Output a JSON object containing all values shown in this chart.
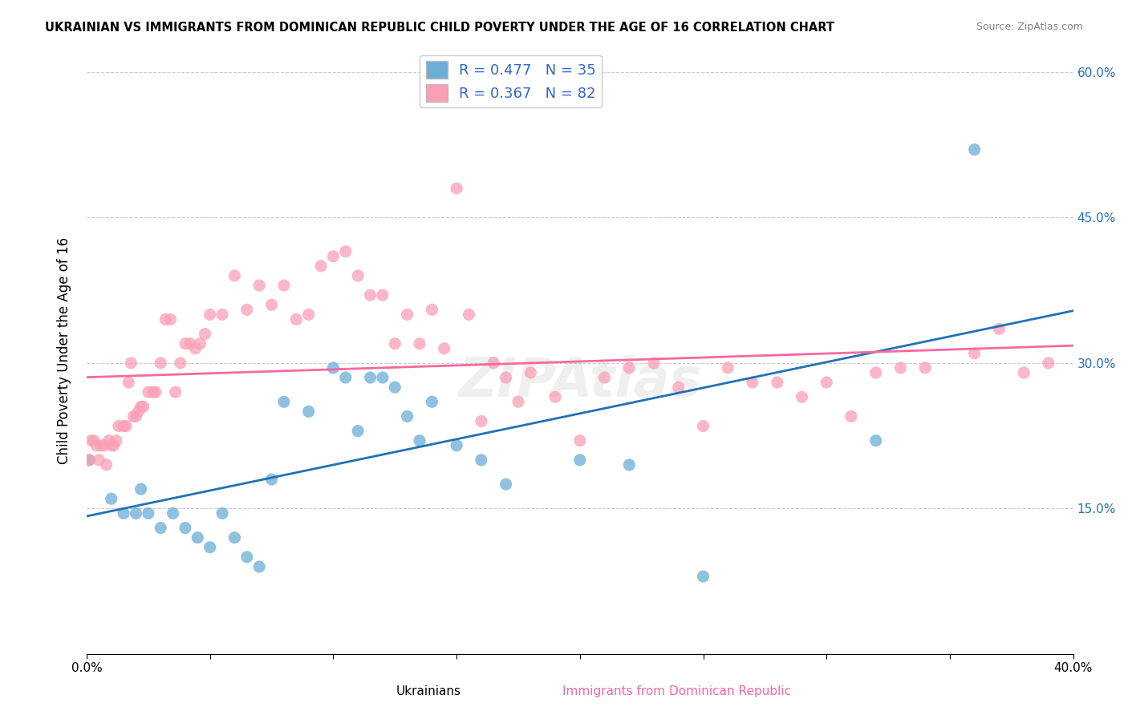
{
  "title": "UKRAINIAN VS IMMIGRANTS FROM DOMINICAN REPUBLIC CHILD POVERTY UNDER THE AGE OF 16 CORRELATION CHART",
  "source": "Source: ZipAtlas.com",
  "ylabel": "Child Poverty Under the Age of 16",
  "xlabel_ukrainians": "Ukrainians",
  "xlabel_dominican": "Immigrants from Dominican Republic",
  "xmin": 0.0,
  "xmax": 0.4,
  "ymin": 0.0,
  "ymax": 0.625,
  "yticks": [
    0.15,
    0.3,
    0.45,
    0.6
  ],
  "ytick_labels": [
    "15.0%",
    "30.0%",
    "45.0%",
    "60.0%"
  ],
  "xticks": [
    0.0,
    0.05,
    0.1,
    0.15,
    0.2,
    0.25,
    0.3,
    0.35,
    0.4
  ],
  "xtick_labels": [
    "0.0%",
    "",
    "",
    "",
    "",
    "",
    "",
    "",
    "40.0%"
  ],
  "R_blue": 0.477,
  "N_blue": 35,
  "R_pink": 0.367,
  "N_pink": 82,
  "blue_color": "#6baed6",
  "pink_color": "#fa9fb5",
  "blue_line_color": "#2171b5",
  "pink_line_color": "#f768a1",
  "watermark": "ZIPAtlas",
  "blue_scatter_x": [
    0.001,
    0.01,
    0.015,
    0.02,
    0.022,
    0.025,
    0.03,
    0.035,
    0.04,
    0.045,
    0.05,
    0.055,
    0.06,
    0.065,
    0.07,
    0.075,
    0.08,
    0.09,
    0.1,
    0.105,
    0.11,
    0.115,
    0.12,
    0.125,
    0.13,
    0.135,
    0.14,
    0.15,
    0.16,
    0.17,
    0.2,
    0.22,
    0.25,
    0.32,
    0.36
  ],
  "blue_scatter_y": [
    0.2,
    0.16,
    0.145,
    0.145,
    0.17,
    0.145,
    0.13,
    0.145,
    0.13,
    0.12,
    0.11,
    0.145,
    0.12,
    0.1,
    0.09,
    0.18,
    0.26,
    0.25,
    0.295,
    0.285,
    0.23,
    0.285,
    0.285,
    0.275,
    0.245,
    0.22,
    0.26,
    0.215,
    0.2,
    0.175,
    0.2,
    0.195,
    0.08,
    0.22,
    0.52
  ],
  "pink_scatter_x": [
    0.001,
    0.002,
    0.003,
    0.004,
    0.005,
    0.006,
    0.007,
    0.008,
    0.009,
    0.01,
    0.011,
    0.012,
    0.013,
    0.015,
    0.016,
    0.017,
    0.018,
    0.019,
    0.02,
    0.021,
    0.022,
    0.023,
    0.025,
    0.027,
    0.028,
    0.03,
    0.032,
    0.034,
    0.036,
    0.038,
    0.04,
    0.042,
    0.044,
    0.046,
    0.048,
    0.05,
    0.055,
    0.06,
    0.065,
    0.07,
    0.075,
    0.08,
    0.085,
    0.09,
    0.095,
    0.1,
    0.105,
    0.11,
    0.115,
    0.12,
    0.125,
    0.13,
    0.135,
    0.14,
    0.145,
    0.15,
    0.155,
    0.16,
    0.165,
    0.17,
    0.175,
    0.18,
    0.19,
    0.2,
    0.21,
    0.22,
    0.23,
    0.24,
    0.25,
    0.26,
    0.27,
    0.28,
    0.29,
    0.3,
    0.31,
    0.32,
    0.33,
    0.34,
    0.36,
    0.37,
    0.38,
    0.39
  ],
  "pink_scatter_y": [
    0.2,
    0.22,
    0.22,
    0.215,
    0.2,
    0.215,
    0.215,
    0.195,
    0.22,
    0.215,
    0.215,
    0.22,
    0.235,
    0.235,
    0.235,
    0.28,
    0.3,
    0.245,
    0.245,
    0.25,
    0.255,
    0.255,
    0.27,
    0.27,
    0.27,
    0.3,
    0.345,
    0.345,
    0.27,
    0.3,
    0.32,
    0.32,
    0.315,
    0.32,
    0.33,
    0.35,
    0.35,
    0.39,
    0.355,
    0.38,
    0.36,
    0.38,
    0.345,
    0.35,
    0.4,
    0.41,
    0.415,
    0.39,
    0.37,
    0.37,
    0.32,
    0.35,
    0.32,
    0.355,
    0.315,
    0.48,
    0.35,
    0.24,
    0.3,
    0.285,
    0.26,
    0.29,
    0.265,
    0.22,
    0.285,
    0.295,
    0.3,
    0.275,
    0.235,
    0.295,
    0.28,
    0.28,
    0.265,
    0.28,
    0.245,
    0.29,
    0.295,
    0.295,
    0.31,
    0.335,
    0.29,
    0.3
  ]
}
